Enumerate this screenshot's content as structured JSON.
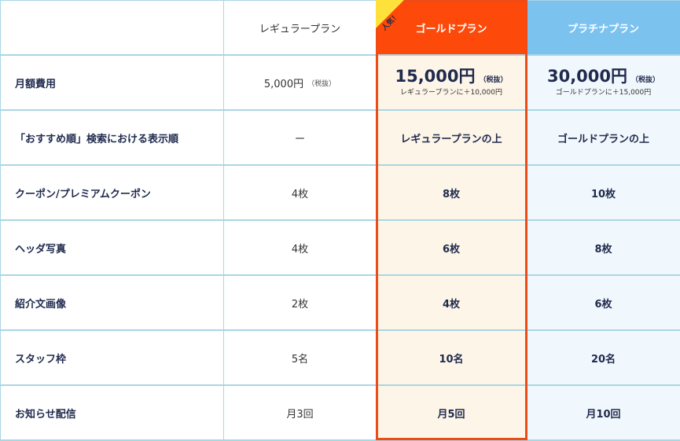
{
  "header": {
    "empty": "",
    "regular": "レギュラープラン",
    "gold": "ゴールドプラン",
    "platinum": "プラチナプラン",
    "gold_badge": "人気！"
  },
  "rows": {
    "price": {
      "label": "月額費用",
      "regular_price": "5,000円",
      "regular_tax": "（税抜）",
      "gold_price": "15,000円",
      "gold_tax": "（税抜）",
      "gold_note": "レギュラープランに＋10,000円",
      "platinum_price": "30,000円",
      "platinum_tax": "（税抜）",
      "platinum_note": "ゴールドプランに＋15,000円"
    },
    "display_order": {
      "label": "「おすすめ順」検索における表示順",
      "regular": "ー",
      "gold": "レギュラープランの上",
      "platinum": "ゴールドプランの上"
    },
    "coupon": {
      "label": "クーポン/プレミアムクーポン",
      "regular": "4枚",
      "gold": "8枚",
      "platinum": "10枚"
    },
    "header_photo": {
      "label": "ヘッダ写真",
      "regular": "4枚",
      "gold": "6枚",
      "platinum": "8枚"
    },
    "intro_image": {
      "label": "紹介文画像",
      "regular": "2枚",
      "gold": "4枚",
      "platinum": "6枚"
    },
    "staff": {
      "label": "スタッフ枠",
      "regular": "5名",
      "gold": "10名",
      "platinum": "20名"
    },
    "notice": {
      "label": "お知らせ配信",
      "regular": "月3回",
      "gold": "月5回",
      "platinum": "月10回"
    }
  },
  "colors": {
    "gold_header": "#fd4a0a",
    "gold_outline": "#ef4b16",
    "gold_column_bg": "#fdf5e8",
    "platinum_header": "#7cc2ef",
    "platinum_column_bg": "#f1f8fd",
    "badge": "#ffe13b",
    "border": "#a9d6e4",
    "text": "#1f2a4d"
  }
}
